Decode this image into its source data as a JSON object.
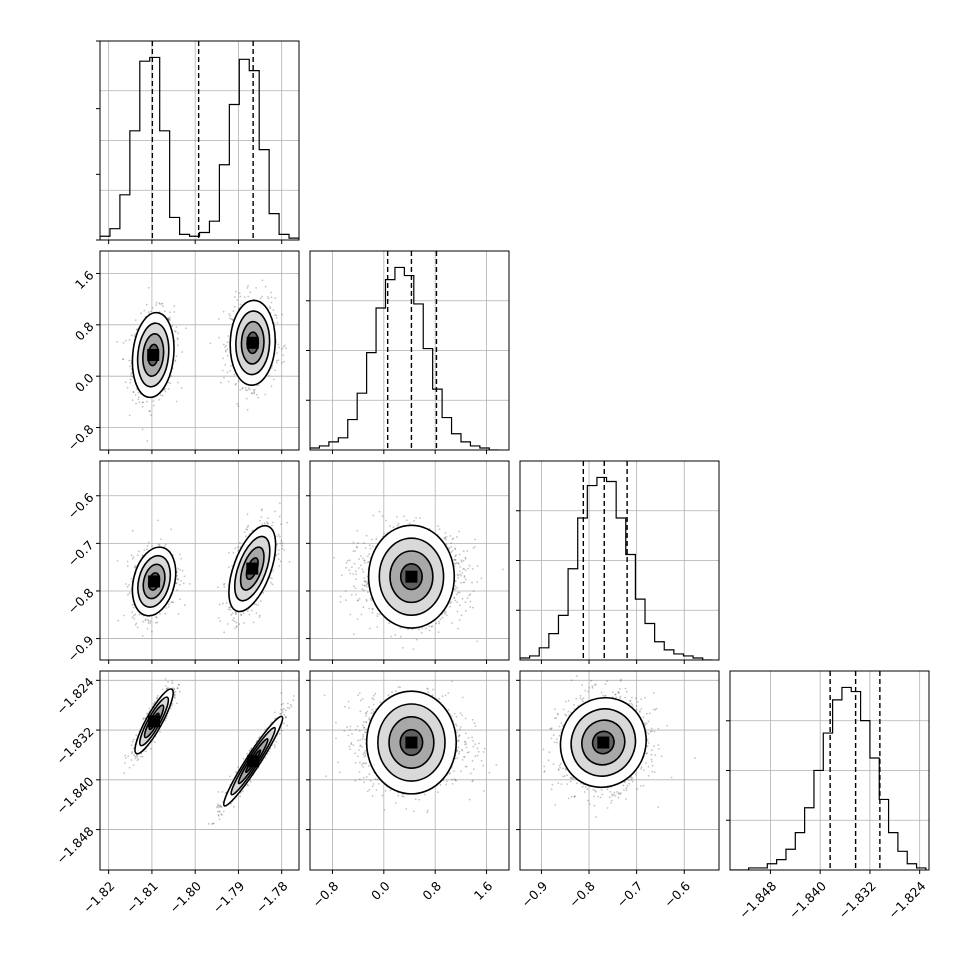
{
  "chart_data": {
    "type": "corner",
    "title": "",
    "parameters": 4,
    "colors": {
      "hist": "#000000",
      "contour": "#000000",
      "grid": "#b0b0b0",
      "points": "#555555"
    },
    "axes_ranges": [
      [
        -1.822,
        -1.776
      ],
      [
        -1.15,
        1.95
      ],
      [
        -0.945,
        -0.527
      ],
      [
        -1.8545,
        -1.8225
      ]
    ],
    "ticks": [
      {
        "values": [
          -1.82,
          -1.81,
          -1.8,
          -1.79,
          -1.78
        ],
        "labels": [
          "−1.82",
          "−1.81",
          "−1.80",
          "−1.79",
          "−1.78"
        ]
      },
      {
        "values": [
          -0.8,
          0.0,
          0.8,
          1.6
        ],
        "labels": [
          "−0.8",
          "0.0",
          "0.8",
          "1.6"
        ]
      },
      {
        "values": [
          -0.9,
          -0.8,
          -0.7,
          -0.6
        ],
        "labels": [
          "−0.9",
          "−0.8",
          "−0.7",
          "−0.6"
        ]
      },
      {
        "values": [
          -1.848,
          -1.84,
          -1.832,
          -1.824
        ],
        "labels": [
          "−1.848",
          "−1.840",
          "−1.832",
          "−1.824"
        ]
      }
    ],
    "quantiles": [
      [
        -1.8099,
        -1.7992,
        -1.7866
      ],
      [
        0.06,
        0.43,
        0.82
      ],
      [
        -0.812,
        -0.768,
        -0.72
      ],
      [
        -1.8384,
        -1.8343,
        -1.8304
      ]
    ],
    "histograms": [
      {
        "bins": [
          -1.822,
          -1.8197,
          -1.8174,
          -1.8151,
          -1.8128,
          -1.8105,
          -1.8082,
          -1.8059,
          -1.8036,
          -1.8013,
          -1.799,
          -1.7967,
          -1.7944,
          -1.7921,
          -1.7898,
          -1.7875,
          -1.7852,
          -1.7829,
          -1.7806,
          -1.7783,
          -1.776
        ],
        "counts": [
          2,
          6,
          24,
          58,
          95,
          97,
          58,
          12,
          3,
          2,
          4,
          10,
          40,
          72,
          96,
          90,
          48,
          14,
          3,
          1
        ]
      },
      {
        "bins": [
          -1.15,
          -1.003,
          -0.856,
          -0.709,
          -0.562,
          -0.415,
          -0.268,
          -0.121,
          0.026,
          0.173,
          0.32,
          0.467,
          0.614,
          0.761,
          0.908,
          1.055,
          1.202,
          1.349,
          1.496,
          1.643,
          1.79
        ],
        "counts": [
          1,
          2,
          4,
          6,
          15,
          28,
          48,
          70,
          84,
          90,
          86,
          72,
          50,
          30,
          16,
          8,
          4,
          2,
          1,
          0
        ]
      },
      {
        "bins": [
          -0.945,
          -0.9248,
          -0.9046,
          -0.8844,
          -0.8642,
          -0.844,
          -0.8238,
          -0.8036,
          -0.7834,
          -0.7632,
          -0.743,
          -0.7228,
          -0.7026,
          -0.6824,
          -0.6622,
          -0.642,
          -0.6218,
          -0.6016,
          -0.5814,
          -0.5612,
          -0.541
        ],
        "counts": [
          1,
          2,
          6,
          13,
          22,
          45,
          70,
          86,
          90,
          88,
          70,
          52,
          30,
          18,
          9,
          5,
          3,
          2,
          1,
          0
        ]
      },
      {
        "bins": [
          -1.8545,
          -1.853,
          -1.8515,
          -1.85,
          -1.8485,
          -1.847,
          -1.8455,
          -1.844,
          -1.8425,
          -1.841,
          -1.8395,
          -1.838,
          -1.8365,
          -1.835,
          -1.8335,
          -1.832,
          -1.8305,
          -1.829,
          -1.8275,
          -1.826,
          -1.8245,
          -1.823
        ],
        "counts": [
          0,
          0,
          1,
          1,
          3,
          5,
          10,
          18,
          30,
          48,
          66,
          82,
          88,
          86,
          72,
          54,
          34,
          18,
          9,
          3,
          1
        ]
      }
    ],
    "scatter_pairs": [
      {
        "row": 1,
        "col": 0,
        "clusters": [
          {
            "mean": [
              -1.8097,
              0.33
            ],
            "sd": [
              0.0024,
              0.33
            ],
            "rho": 0.15
          },
          {
            "mean": [
              -1.7867,
              0.52
            ],
            "sd": [
              0.0026,
              0.33
            ],
            "rho": 0.05
          }
        ]
      },
      {
        "row": 2,
        "col": 0,
        "clusters": [
          {
            "mean": [
              -1.8095,
              -0.78
            ],
            "sd": [
              0.0025,
              0.036
            ],
            "rho": 0.25
          },
          {
            "mean": [
              -1.7868,
              -0.753
            ],
            "sd": [
              0.0027,
              0.045
            ],
            "rho": 0.55
          }
        ]
      },
      {
        "row": 2,
        "col": 1,
        "clusters": [
          {
            "mean": [
              0.43,
              -0.77
            ],
            "sd": [
              0.4,
              0.045
            ],
            "rho": 0.0
          }
        ]
      },
      {
        "row": 3,
        "col": 0,
        "clusters": [
          {
            "mean": [
              -1.8095,
              -1.8306
            ],
            "sd": [
              0.0022,
              0.0026
            ],
            "rho": 0.88
          },
          {
            "mean": [
              -1.7866,
              -1.837
            ],
            "sd": [
              0.0034,
              0.0036
            ],
            "rho": 0.96
          }
        ]
      },
      {
        "row": 3,
        "col": 1,
        "clusters": [
          {
            "mean": [
              0.43,
              -1.834
            ],
            "sd": [
              0.4,
              0.0036
            ],
            "rho": 0.0
          }
        ]
      },
      {
        "row": 3,
        "col": 2,
        "clusters": [
          {
            "mean": [
              -0.77,
              -1.834
            ],
            "sd": [
              0.045,
              0.0036
            ],
            "rho": 0.05
          }
        ]
      }
    ]
  }
}
